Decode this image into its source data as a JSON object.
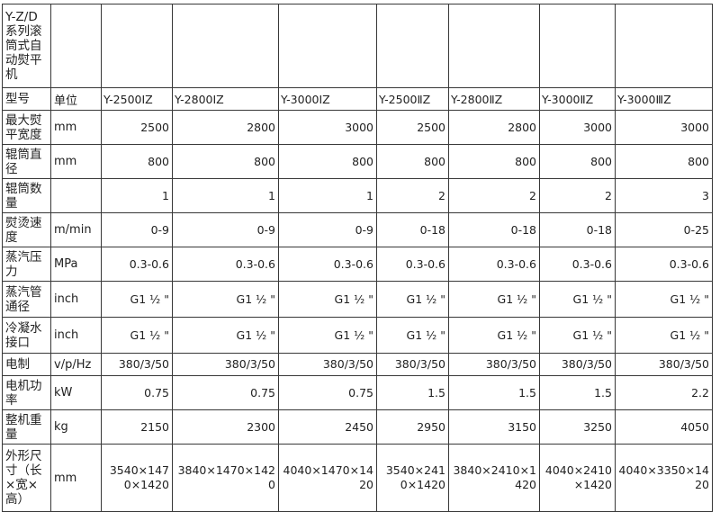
{
  "table": {
    "title": "Y-Z/D系列滚筒式自动熨平机",
    "header": {
      "label": "型号",
      "unit": "单位"
    },
    "models": [
      "Y-2500ⅠZ",
      "Y-2800ⅠZ",
      "Y-3000ⅠZ",
      "Y-2500ⅡZ",
      "Y-2800ⅡZ",
      "Y-3000ⅡZ",
      "Y-3000ⅢZ"
    ],
    "rows": [
      {
        "label": "最大熨平宽度",
        "unit": "mm",
        "values": [
          "2500",
          "2800",
          "3000",
          "2500",
          "2800",
          "3000",
          "3000"
        ]
      },
      {
        "label": "辊筒直径",
        "unit": "mm",
        "values": [
          "800",
          "800",
          "800",
          "800",
          "800",
          "800",
          "800"
        ]
      },
      {
        "label": "辊筒数量",
        "unit": "",
        "values": [
          "1",
          "1",
          "1",
          "2",
          "2",
          "2",
          "3"
        ]
      },
      {
        "label": "熨烫速度",
        "unit": "m/min",
        "values": [
          "0-9",
          "0-9",
          "0-9",
          "0-18",
          "0-18",
          "0-18",
          "0-25"
        ]
      },
      {
        "label": "蒸汽压力",
        "unit": "MPa",
        "values": [
          "0.3-0.6",
          "0.3-0.6",
          "0.3-0.6",
          "0.3-0.6",
          "0.3-0.6",
          "0.3-0.6",
          "0.3-0.6"
        ]
      },
      {
        "label": "蒸汽管通径",
        "unit": "inch",
        "values": [
          "G1 ½ \"",
          "G1 ½ \"",
          "G1 ½ \"",
          "G1 ½ \"",
          "G1 ½ \"",
          "G1 ½ \"",
          "G1 ½ \""
        ]
      },
      {
        "label": "冷凝水接口",
        "unit": "inch",
        "values": [
          "G1 ½ \"",
          "G1 ½ \"",
          "G1 ½ \"",
          "G1 ½ \"",
          "G1 ½ \"",
          "G1 ½ \"",
          "G1 ½ \""
        ]
      },
      {
        "label": "电制",
        "unit": "v/p/Hz",
        "values": [
          "380/3/50",
          "380/3/50",
          "380/3/50",
          "380/3/50",
          "380/3/50",
          "380/3/50",
          "380/3/50"
        ]
      },
      {
        "label": "电机功率",
        "unit": "kW",
        "values": [
          "0.75",
          "0.75",
          "0.75",
          "1.5",
          "1.5",
          "1.5",
          "2.2"
        ]
      },
      {
        "label": "整机重量",
        "unit": "kg",
        "values": [
          "2150",
          "2300",
          "2450",
          "2950",
          "3150",
          "3250",
          "4050"
        ]
      },
      {
        "label": "外形尺寸（长×宽×高）",
        "unit": "mm",
        "values": [
          "3540×1470×1420",
          "3840×1470×1420",
          "4040×1470×1420",
          "3540×2410×1420",
          "3840×2410×1420",
          "4040×2410×1420",
          "4040×3350×1420"
        ]
      }
    ]
  }
}
